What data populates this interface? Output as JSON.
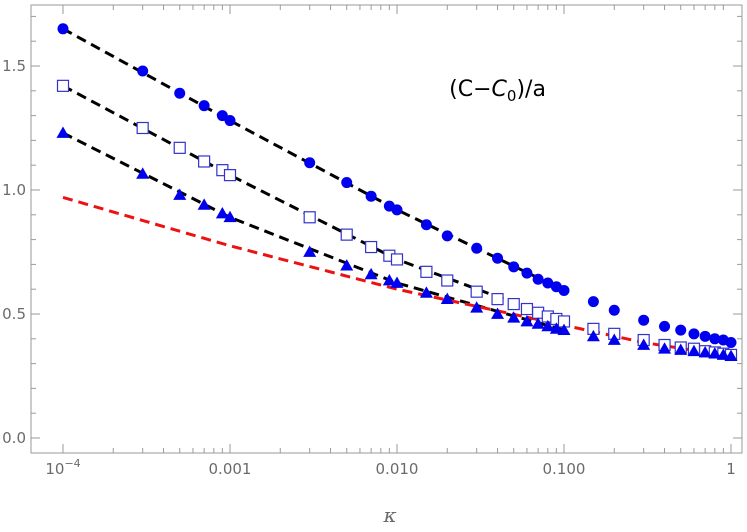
{
  "chart_data": {
    "type": "scatter",
    "title": "",
    "xlabel": "κ",
    "ylabel": "",
    "x_scale": "log",
    "xlim": [
      0.0001,
      1
    ],
    "ylim": [
      0.0,
      1.7
    ],
    "grid": false,
    "legend": "none",
    "x_ticks": [
      {
        "value": 0.0001,
        "label_base": "10",
        "label_exp": "−4"
      },
      {
        "value": 0.001,
        "label": "0.001"
      },
      {
        "value": 0.01,
        "label": "0.010"
      },
      {
        "value": 0.1,
        "label": "0.100"
      },
      {
        "value": 1,
        "label": "1"
      }
    ],
    "y_ticks": [
      {
        "value": 0.0,
        "label": "0.0"
      },
      {
        "value": 0.5,
        "label": "0.5"
      },
      {
        "value": 1.0,
        "label": "1.0"
      },
      {
        "value": 1.5,
        "label": "1.5"
      }
    ],
    "annotation": {
      "prefix": "(C−",
      "italic": "C",
      "subscript": "0",
      "suffix": ")/a",
      "x": 0.04,
      "y": 1.38
    },
    "series": [
      {
        "marker": "circle-filled",
        "color": "#0000ee",
        "points": [
          [
            0.0001,
            1.65
          ],
          [
            0.0003,
            1.48
          ],
          [
            0.0005,
            1.39
          ],
          [
            0.0007,
            1.34
          ],
          [
            0.0009,
            1.3
          ],
          [
            0.001,
            1.28
          ],
          [
            0.003,
            1.11
          ],
          [
            0.005,
            1.03
          ],
          [
            0.007,
            0.975
          ],
          [
            0.009,
            0.935
          ],
          [
            0.01,
            0.92
          ],
          [
            0.015,
            0.86
          ],
          [
            0.02,
            0.815
          ],
          [
            0.03,
            0.765
          ],
          [
            0.04,
            0.725
          ],
          [
            0.05,
            0.69
          ],
          [
            0.06,
            0.665
          ],
          [
            0.07,
            0.64
          ],
          [
            0.08,
            0.625
          ],
          [
            0.09,
            0.61
          ],
          [
            0.1,
            0.595
          ],
          [
            0.15,
            0.55
          ],
          [
            0.2,
            0.515
          ],
          [
            0.3,
            0.475
          ],
          [
            0.4,
            0.45
          ],
          [
            0.5,
            0.435
          ],
          [
            0.6,
            0.42
          ],
          [
            0.7,
            0.41
          ],
          [
            0.8,
            0.4
          ],
          [
            0.9,
            0.395
          ],
          [
            1.0,
            0.385
          ]
        ]
      },
      {
        "marker": "square-open",
        "color": "#3333cc",
        "points": [
          [
            0.0001,
            1.42
          ],
          [
            0.0003,
            1.25
          ],
          [
            0.0005,
            1.17
          ],
          [
            0.0007,
            1.115
          ],
          [
            0.0009,
            1.08
          ],
          [
            0.001,
            1.06
          ],
          [
            0.003,
            0.89
          ],
          [
            0.005,
            0.82
          ],
          [
            0.007,
            0.77
          ],
          [
            0.009,
            0.735
          ],
          [
            0.01,
            0.72
          ],
          [
            0.015,
            0.67
          ],
          [
            0.02,
            0.635
          ],
          [
            0.03,
            0.59
          ],
          [
            0.04,
            0.56
          ],
          [
            0.05,
            0.54
          ],
          [
            0.06,
            0.52
          ],
          [
            0.07,
            0.505
          ],
          [
            0.08,
            0.49
          ],
          [
            0.09,
            0.48
          ],
          [
            0.1,
            0.47
          ],
          [
            0.15,
            0.44
          ],
          [
            0.2,
            0.42
          ],
          [
            0.3,
            0.395
          ],
          [
            0.4,
            0.375
          ],
          [
            0.5,
            0.365
          ],
          [
            0.6,
            0.36
          ],
          [
            0.7,
            0.35
          ],
          [
            0.8,
            0.345
          ],
          [
            0.9,
            0.34
          ],
          [
            1.0,
            0.335
          ]
        ]
      },
      {
        "marker": "triangle-filled",
        "color": "#0000ee",
        "points": [
          [
            0.0001,
            1.23
          ],
          [
            0.0003,
            1.065
          ],
          [
            0.0005,
            0.98
          ],
          [
            0.0007,
            0.94
          ],
          [
            0.0009,
            0.905
          ],
          [
            0.001,
            0.89
          ],
          [
            0.003,
            0.75
          ],
          [
            0.005,
            0.695
          ],
          [
            0.007,
            0.66
          ],
          [
            0.009,
            0.635
          ],
          [
            0.01,
            0.625
          ],
          [
            0.015,
            0.585
          ],
          [
            0.02,
            0.56
          ],
          [
            0.03,
            0.525
          ],
          [
            0.04,
            0.5
          ],
          [
            0.05,
            0.485
          ],
          [
            0.06,
            0.47
          ],
          [
            0.07,
            0.46
          ],
          [
            0.08,
            0.45
          ],
          [
            0.09,
            0.44
          ],
          [
            0.1,
            0.435
          ],
          [
            0.15,
            0.41
          ],
          [
            0.2,
            0.395
          ],
          [
            0.3,
            0.375
          ],
          [
            0.4,
            0.36
          ],
          [
            0.5,
            0.355
          ],
          [
            0.6,
            0.35
          ],
          [
            0.7,
            0.345
          ],
          [
            0.8,
            0.34
          ],
          [
            0.9,
            0.335
          ],
          [
            1.0,
            0.33
          ]
        ]
      }
    ],
    "fit_lines": [
      {
        "style": "dashed",
        "color": "#000000",
        "points": [
          [
            0.0001,
            1.65
          ],
          [
            0.001,
            1.28
          ],
          [
            0.01,
            0.92
          ],
          [
            0.1,
            0.595
          ]
        ]
      },
      {
        "style": "dashed",
        "color": "#000000",
        "points": [
          [
            0.0001,
            1.42
          ],
          [
            0.001,
            1.06
          ],
          [
            0.01,
            0.72
          ],
          [
            0.1,
            0.47
          ]
        ]
      },
      {
        "style": "dashed",
        "color": "#000000",
        "points": [
          [
            0.0001,
            1.23
          ],
          [
            0.001,
            0.89
          ],
          [
            0.01,
            0.625
          ],
          [
            0.1,
            0.435
          ]
        ]
      },
      {
        "style": "dashed",
        "color": "#ee1111",
        "points": [
          [
            0.0001,
            0.97
          ],
          [
            0.001,
            0.775
          ],
          [
            0.01,
            0.6
          ],
          [
            0.1,
            0.455
          ],
          [
            0.3,
            0.385
          ],
          [
            1.0,
            0.33
          ]
        ]
      }
    ]
  }
}
